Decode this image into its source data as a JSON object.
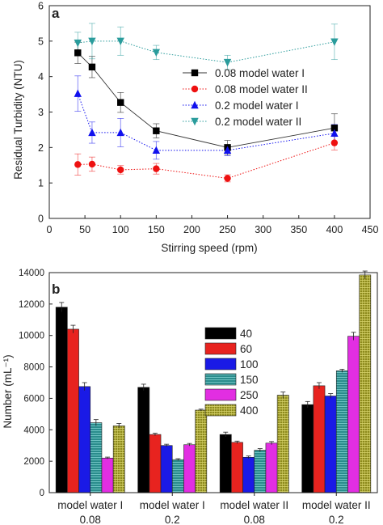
{
  "chart_data": [
    {
      "panel_label": "a",
      "type": "line",
      "xlabel": "Stirring speed (rpm)",
      "ylabel": "Residual Turbidity (NTU)",
      "xlim": [
        0,
        450
      ],
      "ylim": [
        0,
        6
      ],
      "xticks": [
        0,
        50,
        100,
        150,
        200,
        250,
        300,
        350,
        400,
        450
      ],
      "yticks": [
        0,
        1,
        2,
        3,
        4,
        5,
        6
      ],
      "x": [
        40,
        60,
        100,
        150,
        250,
        400
      ],
      "legend_position": "right",
      "series": [
        {
          "name": "0.08 model water I",
          "marker": "square",
          "color": "#000000",
          "line": "solid",
          "values": [
            4.67,
            4.27,
            3.27,
            2.47,
            2.0,
            2.55
          ],
          "errors": [
            0.3,
            0.3,
            0.28,
            0.2,
            0.2,
            0.4
          ]
        },
        {
          "name": "0.08 model water II",
          "marker": "circle",
          "color": "#ee1111",
          "line": "dotted",
          "values": [
            1.52,
            1.53,
            1.37,
            1.4,
            1.13,
            2.13
          ],
          "errors": [
            0.3,
            0.2,
            0.12,
            0.15,
            0.1,
            0.2
          ]
        },
        {
          "name": "0.2 model water I",
          "marker": "triangle-up",
          "color": "#1111ee",
          "line": "dotted",
          "values": [
            3.52,
            2.42,
            2.42,
            1.92,
            1.92,
            2.4
          ],
          "errors": [
            0.5,
            0.3,
            0.4,
            0.25,
            0.15,
            0.25
          ]
        },
        {
          "name": "0.2 model water II",
          "marker": "triangle-down",
          "color": "#2a9c9c",
          "line": "dotted",
          "values": [
            4.95,
            5.0,
            5.0,
            4.68,
            4.4,
            4.98
          ],
          "errors": [
            0.3,
            0.5,
            0.4,
            0.2,
            0.2,
            0.5
          ]
        }
      ]
    },
    {
      "panel_label": "b",
      "type": "bar",
      "ylabel": "Number (mL⁻¹)",
      "ylim": [
        0,
        14000
      ],
      "yticks": [
        0,
        2000,
        4000,
        6000,
        8000,
        10000,
        12000,
        14000
      ],
      "categories": [
        {
          "line1": "model water I",
          "line2": "0.08"
        },
        {
          "line1": "model water I",
          "line2": "0.2"
        },
        {
          "line1": "model water II",
          "line2": "0.08"
        },
        {
          "line1": "model water II",
          "line2": "0.2"
        }
      ],
      "legend_position": "center",
      "series": [
        {
          "name": "40",
          "color": "#000000",
          "values": [
            11800,
            6700,
            3700,
            5600
          ],
          "errors": [
            300,
            200,
            150,
            200
          ]
        },
        {
          "name": "60",
          "color": "#e8231f",
          "values": [
            10400,
            3700,
            3200,
            6800
          ],
          "errors": [
            250,
            80,
            80,
            200
          ]
        },
        {
          "name": "100",
          "color": "#1a1ae6",
          "values": [
            6750,
            3000,
            2250,
            6150
          ],
          "errors": [
            250,
            80,
            80,
            150
          ]
        },
        {
          "name": "150",
          "color": "#2a8c8c",
          "values": [
            4450,
            2100,
            2700,
            7750
          ],
          "errors": [
            200,
            60,
            100,
            100
          ]
        },
        {
          "name": "250",
          "color": "#e22ee2",
          "values": [
            2200,
            3050,
            3150,
            9950
          ],
          "errors": [
            60,
            80,
            100,
            250
          ]
        },
        {
          "name": "400",
          "color": "#8d8a1c",
          "values": [
            4250,
            5250,
            6200,
            13850
          ],
          "errors": [
            150,
            60,
            200,
            250
          ]
        }
      ]
    }
  ]
}
